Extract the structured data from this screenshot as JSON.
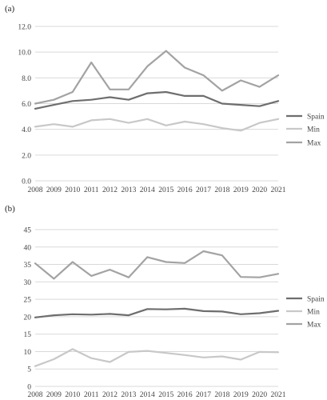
{
  "chart_data": [
    {
      "type": "line",
      "panel_label": "(a)",
      "x": [
        "2008",
        "2009",
        "2010",
        "2011",
        "2012",
        "2013",
        "2014",
        "2015",
        "2016",
        "2017",
        "2018",
        "2019",
        "2020",
        "2021"
      ],
      "ylim": [
        0,
        12
      ],
      "yticks": [
        "0.0",
        "2.0",
        "4.0",
        "6.0",
        "8.0",
        "10.0",
        "12.0"
      ],
      "grid": true,
      "legend_position": "right",
      "series": [
        {
          "name": "Spain",
          "color": "#6e6e6e",
          "values": [
            5.6,
            5.9,
            6.2,
            6.3,
            6.5,
            6.3,
            6.8,
            6.9,
            6.6,
            6.6,
            6.0,
            5.9,
            5.8,
            6.2
          ]
        },
        {
          "name": "Min",
          "color": "#c8c8c8",
          "values": [
            4.2,
            4.4,
            4.2,
            4.7,
            4.8,
            4.5,
            4.8,
            4.3,
            4.6,
            4.4,
            4.1,
            3.9,
            4.5,
            4.8
          ]
        },
        {
          "name": "Max",
          "color": "#a3a3a3",
          "values": [
            6.0,
            6.3,
            6.9,
            9.2,
            7.1,
            7.1,
            8.9,
            10.1,
            8.8,
            8.2,
            7.0,
            7.8,
            7.3,
            8.2
          ]
        }
      ]
    },
    {
      "type": "line",
      "panel_label": "(b)",
      "x": [
        "2008",
        "2009",
        "2010",
        "2011",
        "2012",
        "2013",
        "2014",
        "2015",
        "2016",
        "2017",
        "2018",
        "2019",
        "2020",
        "2021"
      ],
      "ylim": [
        0,
        45
      ],
      "yticks": [
        "0",
        "5",
        "10",
        "15",
        "20",
        "25",
        "30",
        "35",
        "40",
        "45"
      ],
      "grid": true,
      "legend_position": "right",
      "series": [
        {
          "name": "Spain",
          "color": "#6e6e6e",
          "values": [
            19.8,
            20.4,
            20.7,
            20.6,
            20.8,
            20.4,
            22.2,
            22.1,
            22.3,
            21.6,
            21.5,
            20.7,
            21.0,
            21.7
          ]
        },
        {
          "name": "Min",
          "color": "#c8c8c8",
          "values": [
            5.8,
            7.8,
            10.7,
            8.1,
            7.0,
            9.9,
            10.2,
            9.6,
            9.0,
            8.3,
            8.6,
            7.7,
            9.9,
            9.8
          ]
        },
        {
          "name": "Max",
          "color": "#a3a3a3",
          "values": [
            35.3,
            30.9,
            35.7,
            31.7,
            33.5,
            31.3,
            37.1,
            35.7,
            35.4,
            38.8,
            37.6,
            31.4,
            31.3,
            32.3
          ]
        }
      ]
    }
  ]
}
